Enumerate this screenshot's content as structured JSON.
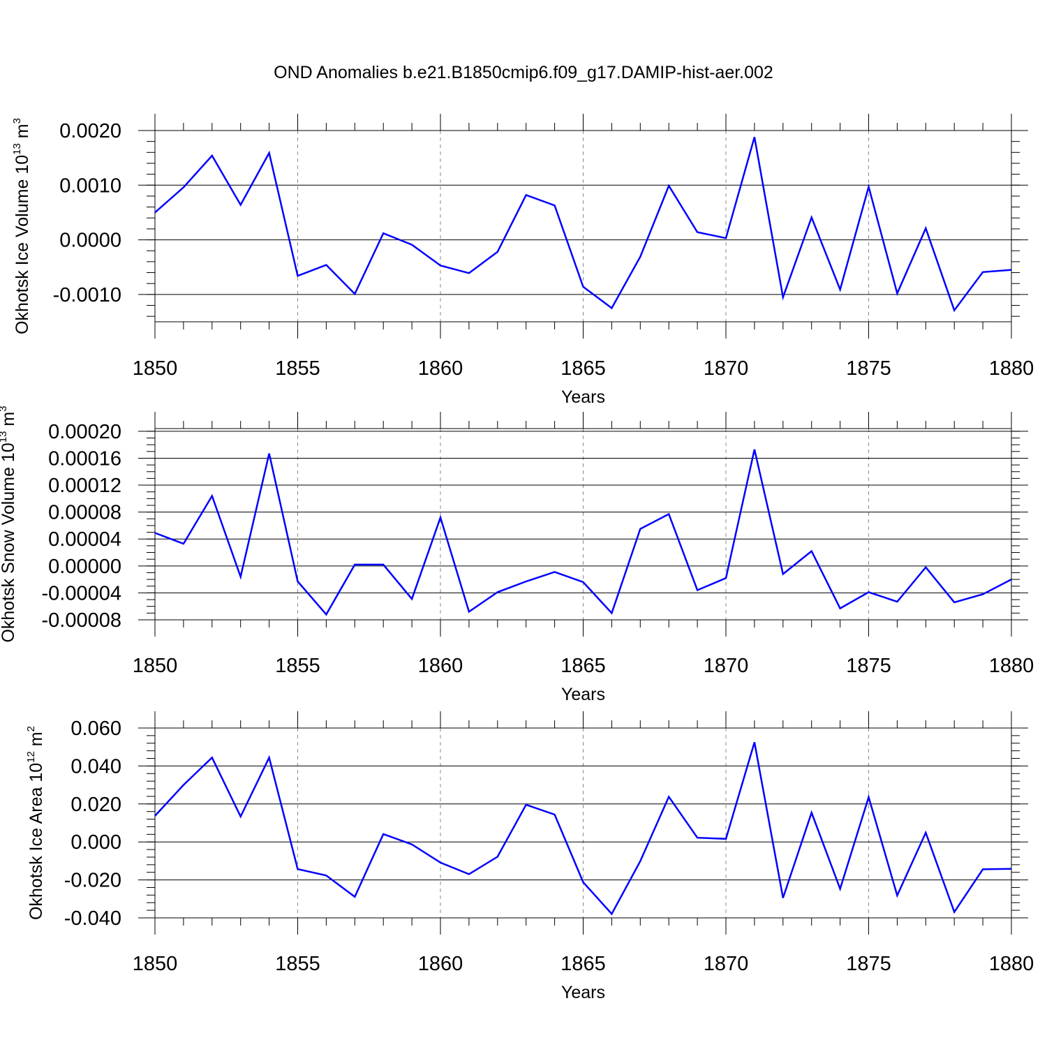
{
  "title": "OND Anomalies b.e21.B1850cmip6.f09_g17.DAMIP-hist-aer.002",
  "series_color": "#0000ff",
  "chart_data": [
    {
      "type": "line",
      "name": "ice-volume",
      "ylabel": "Okhotsk Ice Volume 10",
      "ylabel_exp": "13",
      "ylabel_unit": " m",
      "ylabel_unit_exp": "3",
      "xlabel": "Years",
      "xlim": [
        1850,
        1880
      ],
      "ylim": [
        -0.0015,
        0.002
      ],
      "x_ticks": [
        "1850",
        "1855",
        "1860",
        "1865",
        "1870",
        "1875",
        "1880"
      ],
      "y_ticks": [
        {
          "v": 0.002,
          "label": "0.0020"
        },
        {
          "v": 0.001,
          "label": "0.0010"
        },
        {
          "v": 0.0,
          "label": "0.0000"
        },
        {
          "v": -0.001,
          "label": "-0.0010"
        }
      ],
      "y_minor_step": 0.0002,
      "x": [
        1850,
        1851,
        1852,
        1853,
        1854,
        1855,
        1856,
        1857,
        1858,
        1859,
        1860,
        1861,
        1862,
        1863,
        1864,
        1865,
        1866,
        1867,
        1868,
        1869,
        1870,
        1871,
        1872,
        1873,
        1874,
        1875,
        1876,
        1877,
        1878,
        1879,
        1880
      ],
      "values": [
        0.0005,
        0.00096,
        0.00154,
        0.00064,
        0.00159,
        -0.00066,
        -0.00046,
        -0.00099,
        0.00012,
        -9e-05,
        -0.00047,
        -0.00061,
        -0.00022,
        0.00082,
        0.00063,
        -0.00086,
        -0.00125,
        -0.00031,
        0.00099,
        0.00014,
        3e-05,
        0.00188,
        -0.00105,
        0.00041,
        -0.00091,
        0.00097,
        -0.00098,
        0.00021,
        -0.00129,
        -0.00059,
        -0.00055
      ]
    },
    {
      "type": "line",
      "name": "snow-volume",
      "ylabel": "Okhotsk Snow Volume 10",
      "ylabel_exp": "13",
      "ylabel_unit": " m",
      "ylabel_unit_exp": "3",
      "xlabel": "Years",
      "xlim": [
        1850,
        1880
      ],
      "ylim": [
        -8e-05,
        0.000204
      ],
      "x_ticks": [
        "1850",
        "1855",
        "1860",
        "1865",
        "1870",
        "1875",
        "1880"
      ],
      "y_ticks": [
        {
          "v": 0.0002,
          "label": "0.00020"
        },
        {
          "v": 0.00016,
          "label": "0.00016"
        },
        {
          "v": 0.00012,
          "label": "0.00012"
        },
        {
          "v": 8e-05,
          "label": "0.00008"
        },
        {
          "v": 4e-05,
          "label": "0.00004"
        },
        {
          "v": 0.0,
          "label": "0.00000"
        },
        {
          "v": -4e-05,
          "label": "-0.00004"
        },
        {
          "v": -8e-05,
          "label": "-0.00008"
        }
      ],
      "y_minor_step": 1e-05,
      "x": [
        1850,
        1851,
        1852,
        1853,
        1854,
        1855,
        1856,
        1857,
        1858,
        1859,
        1860,
        1861,
        1862,
        1863,
        1864,
        1865,
        1866,
        1867,
        1868,
        1869,
        1870,
        1871,
        1872,
        1873,
        1874,
        1875,
        1876,
        1877,
        1878,
        1879,
        1880
      ],
      "values": [
        4.9e-05,
        3.3e-05,
        0.000104,
        -1.6e-05,
        0.000167,
        -2.3e-05,
        -7.2e-05,
        2e-06,
        2e-06,
        -4.9e-05,
        7.2e-05,
        -6.8e-05,
        -3.9e-05,
        -2.3e-05,
        -9e-06,
        -2.4e-05,
        -7e-05,
        5.5e-05,
        7.7e-05,
        -3.6e-05,
        -1.8e-05,
        0.000173,
        -1.2e-05,
        2.2e-05,
        -6.3e-05,
        -3.9e-05,
        -5.3e-05,
        -2e-06,
        -5.4e-05,
        -4.2e-05,
        -2e-05
      ]
    },
    {
      "type": "line",
      "name": "ice-area",
      "ylabel": "Okhotsk Ice Area 10",
      "ylabel_exp": "12",
      "ylabel_unit": " m",
      "ylabel_unit_exp": "2",
      "xlabel": "Years",
      "xlim": [
        1850,
        1880
      ],
      "ylim": [
        -0.04,
        0.06
      ],
      "x_ticks": [
        "1850",
        "1855",
        "1860",
        "1865",
        "1870",
        "1875",
        "1880"
      ],
      "y_ticks": [
        {
          "v": 0.06,
          "label": "0.060"
        },
        {
          "v": 0.04,
          "label": "0.040"
        },
        {
          "v": 0.02,
          "label": "0.020"
        },
        {
          "v": 0.0,
          "label": "0.000"
        },
        {
          "v": -0.02,
          "label": "-0.020"
        },
        {
          "v": -0.04,
          "label": "-0.040"
        }
      ],
      "y_minor_step": 0.004,
      "x": [
        1850,
        1851,
        1852,
        1853,
        1854,
        1855,
        1856,
        1857,
        1858,
        1859,
        1860,
        1861,
        1862,
        1863,
        1864,
        1865,
        1866,
        1867,
        1868,
        1869,
        1870,
        1871,
        1872,
        1873,
        1874,
        1875,
        1876,
        1877,
        1878,
        1879,
        1880
      ],
      "values": [
        0.0137,
        0.03,
        0.0444,
        0.0134,
        0.0444,
        -0.0143,
        -0.0177,
        -0.0289,
        0.0041,
        -0.0013,
        -0.0109,
        -0.017,
        -0.0078,
        0.0196,
        0.0144,
        -0.0212,
        -0.0379,
        -0.0101,
        0.0238,
        0.0022,
        0.0016,
        0.0525,
        -0.0295,
        0.0154,
        -0.0247,
        0.0236,
        -0.0282,
        0.0049,
        -0.0369,
        -0.0144,
        -0.0142
      ]
    }
  ]
}
